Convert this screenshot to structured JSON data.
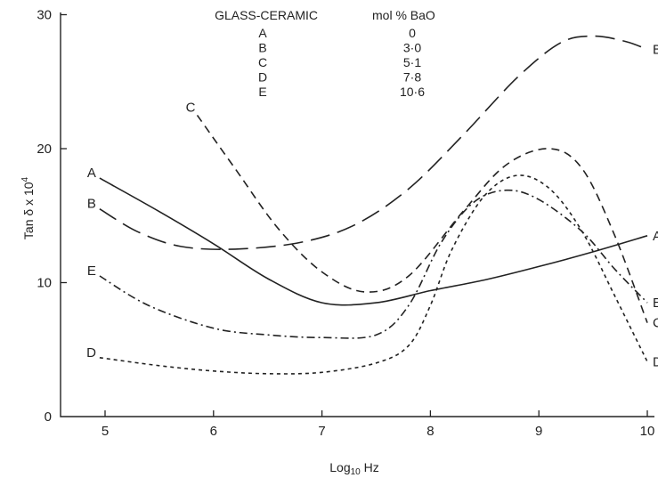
{
  "chart_data": {
    "type": "line",
    "xlabel": "Log10 Hz",
    "ylabel": "Tan δ x 10^4",
    "xlim": [
      4.5,
      10.1
    ],
    "ylim": [
      0,
      31
    ],
    "x_ticks": [
      "5",
      "6",
      "7",
      "8",
      "9",
      "10"
    ],
    "y_ticks": [
      "0",
      "10",
      "20",
      "30"
    ],
    "grid": false,
    "legend": {
      "placement": "top-center",
      "header": [
        "GLASS-CERAMIC",
        "mol % BaO"
      ],
      "rows": [
        {
          "label": "A",
          "value": "0"
        },
        {
          "label": "B",
          "value": "3·0"
        },
        {
          "label": "C",
          "value": "5·1"
        },
        {
          "label": "D",
          "value": "7·8"
        },
        {
          "label": "E",
          "value": "10·6"
        }
      ]
    },
    "series": [
      {
        "name": "A",
        "dash": "solid",
        "points": [
          [
            4.95,
            17.8
          ],
          [
            5.5,
            15.3
          ],
          [
            6.0,
            12.9
          ],
          [
            6.5,
            10.3
          ],
          [
            7.0,
            8.5
          ],
          [
            7.5,
            8.5
          ],
          [
            8.0,
            9.4
          ],
          [
            8.5,
            10.2
          ],
          [
            9.0,
            11.2
          ],
          [
            9.5,
            12.3
          ],
          [
            10.0,
            13.5
          ]
        ]
      },
      {
        "name": "B",
        "dash": "long",
        "points": [
          [
            4.95,
            15.5
          ],
          [
            5.3,
            13.8
          ],
          [
            5.7,
            12.7
          ],
          [
            6.2,
            12.5
          ],
          [
            6.8,
            13.0
          ],
          [
            7.3,
            14.3
          ],
          [
            7.8,
            17.0
          ],
          [
            8.3,
            21.0
          ],
          [
            8.8,
            25.3
          ],
          [
            9.2,
            27.9
          ],
          [
            9.5,
            28.4
          ],
          [
            9.8,
            28.0
          ],
          [
            10.0,
            27.4
          ]
        ]
      },
      {
        "name": "C",
        "dash": "medium",
        "points": [
          [
            5.85,
            22.5
          ],
          [
            6.2,
            18.5
          ],
          [
            6.6,
            14.0
          ],
          [
            7.0,
            10.8
          ],
          [
            7.4,
            9.3
          ],
          [
            7.8,
            10.5
          ],
          [
            8.3,
            15.3
          ],
          [
            8.7,
            18.8
          ],
          [
            9.1,
            20.0
          ],
          [
            9.4,
            18.5
          ],
          [
            9.7,
            13.5
          ],
          [
            10.0,
            7.0
          ]
        ]
      },
      {
        "name": "D",
        "dash": "short",
        "points": [
          [
            4.95,
            4.4
          ],
          [
            5.5,
            3.8
          ],
          [
            6.0,
            3.4
          ],
          [
            6.5,
            3.2
          ],
          [
            7.0,
            3.3
          ],
          [
            7.5,
            4.0
          ],
          [
            7.8,
            5.3
          ],
          [
            8.0,
            8.3
          ],
          [
            8.2,
            12.5
          ],
          [
            8.5,
            16.5
          ],
          [
            8.8,
            18.0
          ],
          [
            9.1,
            17.0
          ],
          [
            9.4,
            13.8
          ],
          [
            9.7,
            9.0
          ],
          [
            10.0,
            4.1
          ]
        ]
      },
      {
        "name": "E",
        "dash": "dashdot",
        "points": [
          [
            4.95,
            10.5
          ],
          [
            5.4,
            8.3
          ],
          [
            6.0,
            6.6
          ],
          [
            6.5,
            6.1
          ],
          [
            7.0,
            5.9
          ],
          [
            7.5,
            6.1
          ],
          [
            7.8,
            8.3
          ],
          [
            8.1,
            13.0
          ],
          [
            8.4,
            16.0
          ],
          [
            8.7,
            16.9
          ],
          [
            9.0,
            16.2
          ],
          [
            9.4,
            13.8
          ],
          [
            9.7,
            11.0
          ],
          [
            10.0,
            8.5
          ]
        ]
      }
    ],
    "curve_labels": [
      {
        "text": "A",
        "at": "start",
        "series": "A"
      },
      {
        "text": "A",
        "at": "end",
        "series": "A"
      },
      {
        "text": "B",
        "at": "start",
        "series": "B"
      },
      {
        "text": "B",
        "at": "end",
        "series": "B"
      },
      {
        "text": "C",
        "at": "start",
        "series": "C"
      },
      {
        "text": "C",
        "at": "end",
        "series": "C"
      },
      {
        "text": "D",
        "at": "start",
        "series": "D"
      },
      {
        "text": "D",
        "at": "end",
        "series": "D"
      },
      {
        "text": "E",
        "at": "start",
        "series": "E"
      },
      {
        "text": "E",
        "at": "end",
        "series": "E"
      }
    ]
  }
}
